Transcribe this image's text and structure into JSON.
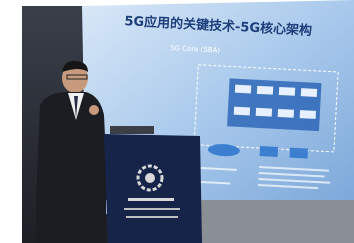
{
  "slide": {
    "title": "5G应用的关键技术-5G核心架构",
    "diagram_title": "5G Core (SBA)"
  }
}
